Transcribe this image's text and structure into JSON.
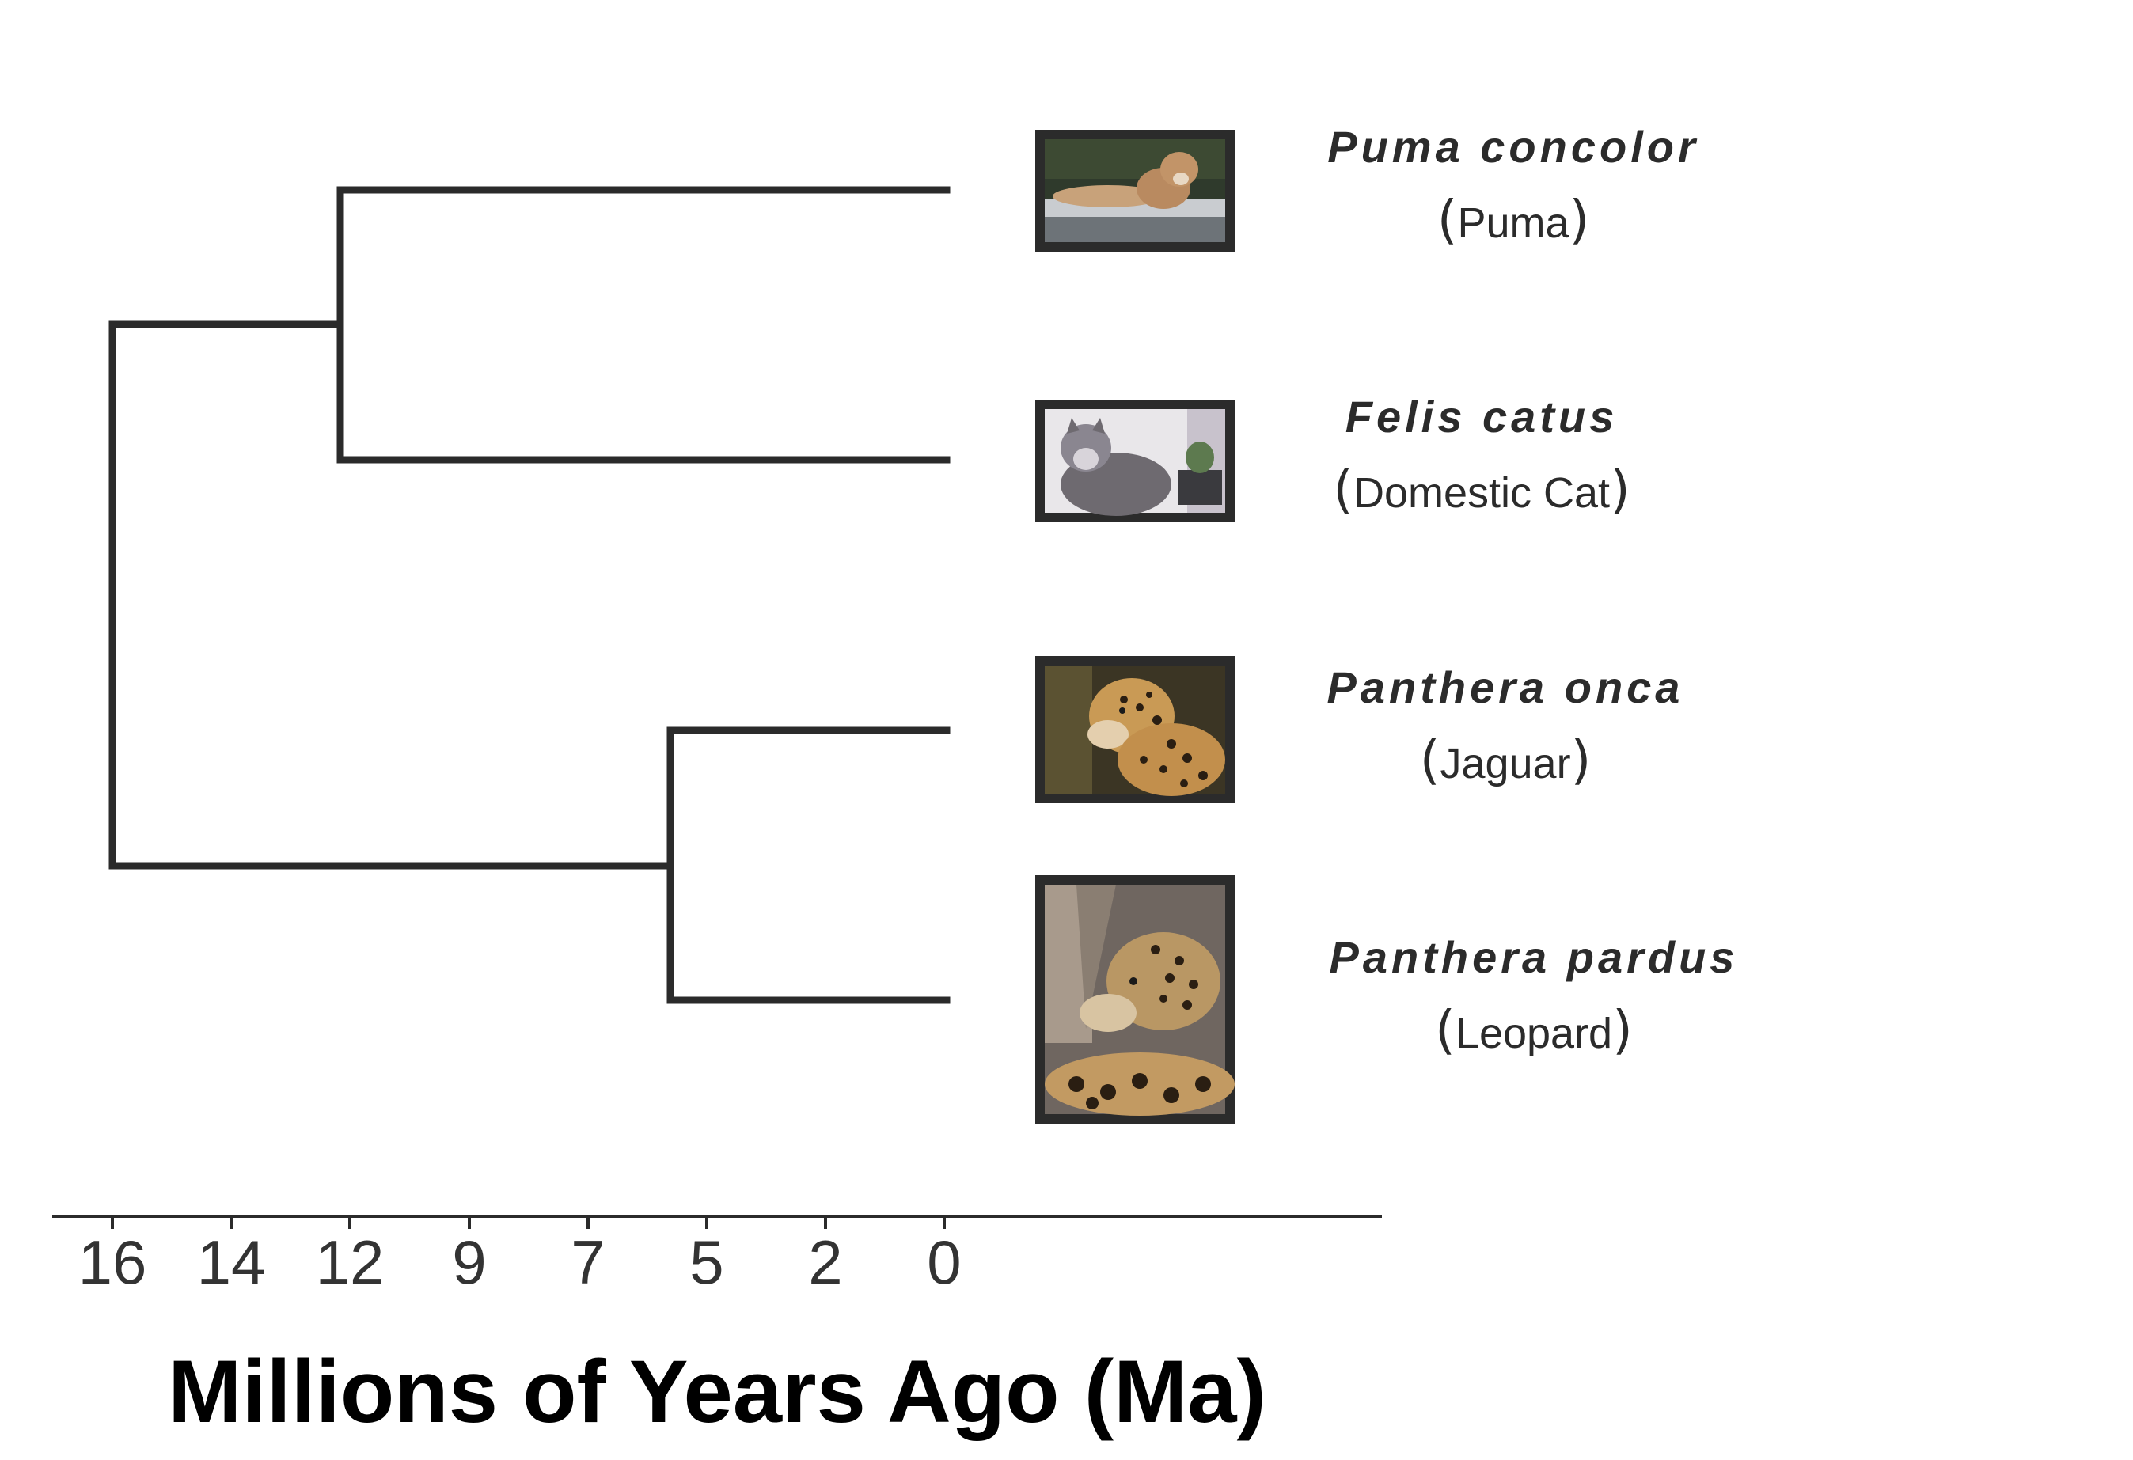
{
  "axis": {
    "title": "Millions of Years Ago (Ma)",
    "ticks": [
      "16",
      "14",
      "12",
      "9",
      "7",
      "5",
      "2",
      "0"
    ]
  },
  "taxa": [
    {
      "scientific": "Puma concolor",
      "common": "Puma",
      "photo_icon": "puma-photo-icon"
    },
    {
      "scientific": "Felis catus",
      "common": "Domestic Cat",
      "photo_icon": "cat-photo-icon"
    },
    {
      "scientific": "Panthera onca",
      "common": "Jaguar",
      "photo_icon": "jaguar-photo-icon"
    },
    {
      "scientific": "Panthera pardus",
      "common": "Leopard",
      "photo_icon": "leopard-photo-icon"
    }
  ],
  "colors": {
    "branch": "#2b2b2b",
    "frame": "#2b2b2b",
    "axis_title": "#000000",
    "text": "#2b2b2b"
  }
}
